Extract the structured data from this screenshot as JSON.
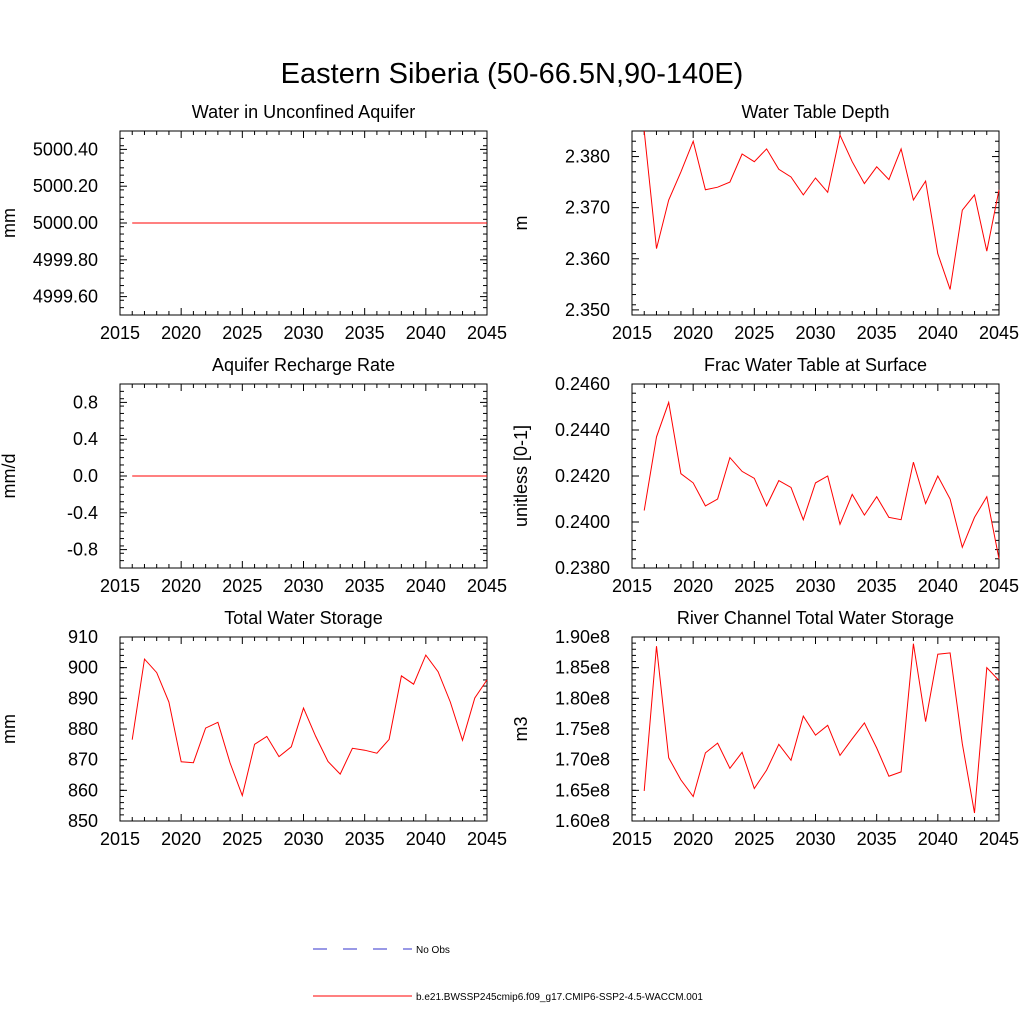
{
  "page_title": "Eastern Siberia (50-66.5N,90-140E)",
  "colors": {
    "model_line": "#ff0000",
    "obs_line": "#3333cc",
    "axis": "#000000"
  },
  "legend": {
    "obs_label": "No Obs",
    "model_label": "b.e21.BWSSP245cmip6.f09_g17.CMIP6-SSP2-4.5-WACCM.001"
  },
  "chart_data": [
    {
      "type": "line",
      "title": "Water in Unconfined Aquifer",
      "ylabel": "mm",
      "xlim": [
        2015,
        2045
      ],
      "ylim": [
        4999.5,
        5000.5
      ],
      "xticks": [
        2015,
        2020,
        2025,
        2030,
        2035,
        2040,
        2045
      ],
      "yticks": [
        4999.6,
        4999.8,
        5000.0,
        5000.2,
        5000.4
      ],
      "ytick_labels": [
        "4999.60",
        "4999.80",
        "5000.00",
        "5000.20",
        "5000.40"
      ],
      "series": [
        {
          "x": [
            2016,
            2017,
            2018,
            2019,
            2020,
            2021,
            2022,
            2023,
            2024,
            2025,
            2026,
            2027,
            2028,
            2029,
            2030,
            2031,
            2032,
            2033,
            2034,
            2035,
            2036,
            2037,
            2038,
            2039,
            2040,
            2041,
            2042,
            2043,
            2044,
            2045
          ],
          "y": [
            5000,
            5000,
            5000,
            5000,
            5000,
            5000,
            5000,
            5000,
            5000,
            5000,
            5000,
            5000,
            5000,
            5000,
            5000,
            5000,
            5000,
            5000,
            5000,
            5000,
            5000,
            5000,
            5000,
            5000,
            5000,
            5000,
            5000,
            5000,
            5000,
            5000
          ]
        }
      ]
    },
    {
      "type": "line",
      "title": "Water Table Depth",
      "ylabel": "m",
      "xlim": [
        2015,
        2045
      ],
      "ylim": [
        2.349,
        2.385
      ],
      "xticks": [
        2015,
        2020,
        2025,
        2030,
        2035,
        2040,
        2045
      ],
      "yticks": [
        2.35,
        2.36,
        2.37,
        2.38
      ],
      "ytick_labels": [
        "2.350",
        "2.360",
        "2.370",
        "2.380"
      ],
      "series": [
        {
          "x": [
            2016,
            2017,
            2018,
            2019,
            2020,
            2021,
            2022,
            2023,
            2024,
            2025,
            2026,
            2027,
            2028,
            2029,
            2030,
            2031,
            2032,
            2033,
            2034,
            2035,
            2036,
            2037,
            2038,
            2039,
            2040,
            2041,
            2042,
            2043,
            2044,
            2045
          ],
          "y": [
            2.385,
            2.362,
            2.3715,
            2.377,
            2.383,
            2.3735,
            2.374,
            2.375,
            2.3805,
            2.379,
            2.3815,
            2.3775,
            2.376,
            2.3725,
            2.3758,
            2.373,
            2.3842,
            2.379,
            2.3747,
            2.378,
            2.3755,
            2.3815,
            2.3715,
            2.3752,
            2.361,
            2.354,
            2.3695,
            2.3725,
            2.3615,
            2.3735
          ]
        }
      ]
    },
    {
      "type": "line",
      "title": "Aquifer Recharge Rate",
      "ylabel": "mm/d",
      "xlim": [
        2015,
        2045
      ],
      "ylim": [
        -1.0,
        1.0
      ],
      "xticks": [
        2015,
        2020,
        2025,
        2030,
        2035,
        2040,
        2045
      ],
      "yticks": [
        -0.8,
        -0.4,
        0.0,
        0.4,
        0.8
      ],
      "ytick_labels": [
        "-0.8",
        "-0.4",
        "0.0",
        "0.4",
        "0.8"
      ],
      "series": [
        {
          "x": [
            2016,
            2017,
            2018,
            2019,
            2020,
            2021,
            2022,
            2023,
            2024,
            2025,
            2026,
            2027,
            2028,
            2029,
            2030,
            2031,
            2032,
            2033,
            2034,
            2035,
            2036,
            2037,
            2038,
            2039,
            2040,
            2041,
            2042,
            2043,
            2044,
            2045
          ],
          "y": [
            0,
            0,
            0,
            0,
            0,
            0,
            0,
            0,
            0,
            0,
            0,
            0,
            0,
            0,
            0,
            0,
            0,
            0,
            0,
            0,
            0,
            0,
            0,
            0,
            0,
            0,
            0,
            0,
            0,
            0
          ]
        }
      ]
    },
    {
      "type": "line",
      "title": "Frac Water Table at Surface",
      "ylabel": "unitless [0-1]",
      "xlim": [
        2015,
        2045
      ],
      "ylim": [
        0.238,
        0.246
      ],
      "xticks": [
        2015,
        2020,
        2025,
        2030,
        2035,
        2040,
        2045
      ],
      "yticks": [
        0.238,
        0.24,
        0.242,
        0.244,
        0.246
      ],
      "ytick_labels": [
        "0.2380",
        "0.2400",
        "0.2420",
        "0.2440",
        "0.2460"
      ],
      "series": [
        {
          "x": [
            2016,
            2017,
            2018,
            2019,
            2020,
            2021,
            2022,
            2023,
            2024,
            2025,
            2026,
            2027,
            2028,
            2029,
            2030,
            2031,
            2032,
            2033,
            2034,
            2035,
            2036,
            2037,
            2038,
            2039,
            2040,
            2041,
            2042,
            2043,
            2044,
            2045
          ],
          "y": [
            0.2405,
            0.2437,
            0.2452,
            0.2421,
            0.2417,
            0.2407,
            0.241,
            0.2428,
            0.2422,
            0.2419,
            0.2407,
            0.2418,
            0.2415,
            0.2401,
            0.2417,
            0.242,
            0.2399,
            0.2412,
            0.2403,
            0.2411,
            0.2402,
            0.2401,
            0.2426,
            0.2408,
            0.242,
            0.241,
            0.2389,
            0.2402,
            0.2411,
            0.2384
          ]
        }
      ]
    },
    {
      "type": "line",
      "title": "Total Water Storage",
      "ylabel": "mm",
      "xlim": [
        2015,
        2045
      ],
      "ylim": [
        850,
        910
      ],
      "xticks": [
        2015,
        2020,
        2025,
        2030,
        2035,
        2040,
        2045
      ],
      "yticks": [
        850,
        860,
        870,
        880,
        890,
        900,
        910
      ],
      "ytick_labels": [
        "850",
        "860",
        "870",
        "880",
        "890",
        "900",
        "910"
      ],
      "series": [
        {
          "x": [
            2016,
            2017,
            2018,
            2019,
            2020,
            2021,
            2022,
            2023,
            2024,
            2025,
            2026,
            2027,
            2028,
            2029,
            2030,
            2031,
            2032,
            2033,
            2034,
            2035,
            2036,
            2037,
            2038,
            2039,
            2040,
            2041,
            2042,
            2043,
            2044,
            2045
          ],
          "y": [
            876.5,
            902.8,
            898.4,
            888.8,
            869.3,
            869.0,
            880.3,
            882.2,
            868.9,
            858.3,
            875.0,
            877.6,
            871.0,
            874.2,
            886.8,
            877.6,
            869.4,
            865.3,
            873.7,
            873.1,
            872.1,
            876.6,
            897.3,
            894.6,
            904.1,
            898.7,
            888.8,
            876.3,
            890.1,
            896.0
          ]
        }
      ]
    },
    {
      "type": "line",
      "title": "River Channel Total Water Storage",
      "ylabel": "m3",
      "xlim": [
        2015,
        2045
      ],
      "ylim": [
        160000000,
        190000000
      ],
      "xticks": [
        2015,
        2020,
        2025,
        2030,
        2035,
        2040,
        2045
      ],
      "yticks": [
        160000000,
        165000000,
        170000000,
        175000000,
        180000000,
        185000000,
        190000000
      ],
      "ytick_labels": [
        "1.60e8",
        "1.65e8",
        "1.70e8",
        "1.75e8",
        "1.80e8",
        "1.85e8",
        "1.90e8"
      ],
      "series": [
        {
          "x": [
            2016,
            2017,
            2018,
            2019,
            2020,
            2021,
            2022,
            2023,
            2024,
            2025,
            2026,
            2027,
            2028,
            2029,
            2030,
            2031,
            2032,
            2033,
            2034,
            2035,
            2036,
            2037,
            2038,
            2039,
            2040,
            2041,
            2042,
            2043,
            2044,
            2045
          ],
          "y": [
            164900000,
            188500000,
            170300000,
            166700000,
            164000000,
            171100000,
            172700000,
            168600000,
            171200000,
            165300000,
            168300000,
            172500000,
            169900000,
            177100000,
            174000000,
            175600000,
            170700000,
            173400000,
            176000000,
            171900000,
            167300000,
            168000000,
            188900000,
            176200000,
            187200000,
            187400000,
            172600000,
            161300000,
            185000000,
            182900000
          ]
        }
      ]
    }
  ]
}
